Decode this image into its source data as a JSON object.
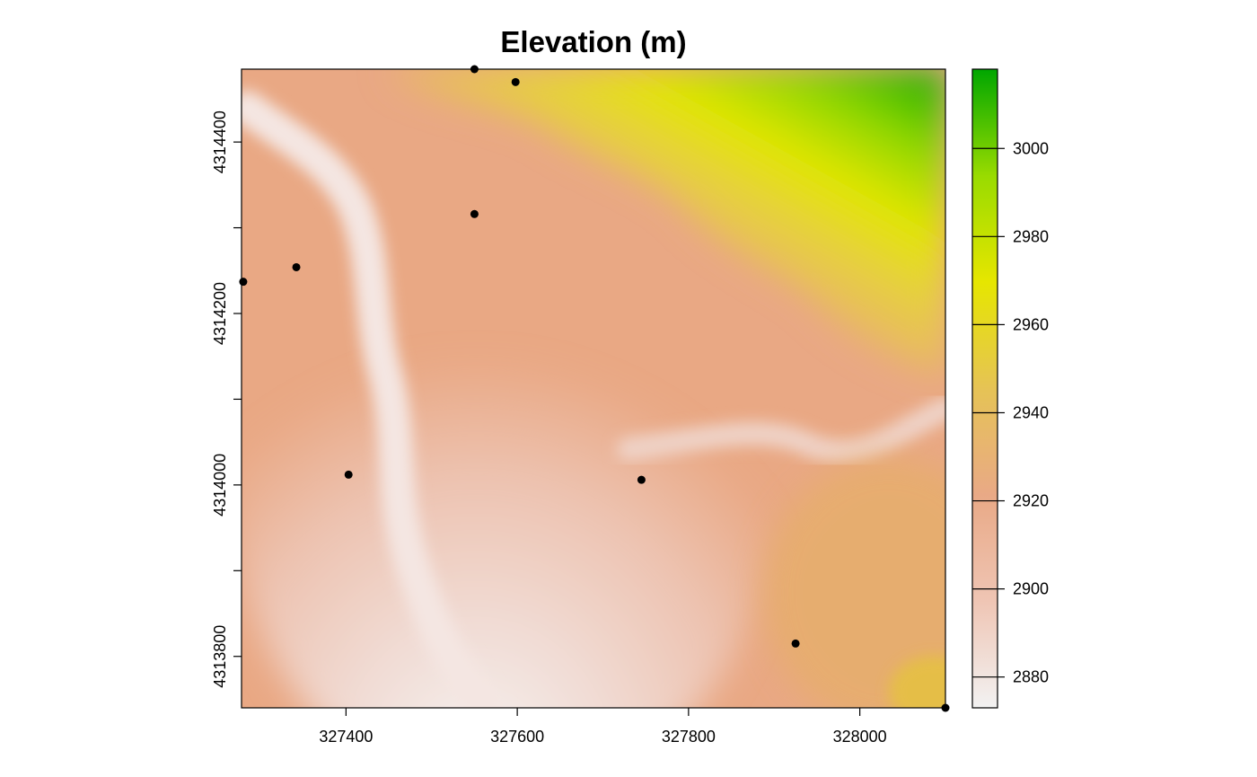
{
  "map": {
    "title": "Elevation (m)",
    "x_ticks": [
      "327400",
      "327600",
      "327800",
      "328000"
    ],
    "x_tick_values": [
      327400,
      327600,
      327800,
      328000
    ],
    "y_ticks": [
      "4313800",
      "4314000",
      "4314200",
      "4314400"
    ],
    "y_tick_values": [
      4313800,
      4314000,
      4314200,
      4314400
    ],
    "y_minor_tick_values": [
      4313900,
      4314100,
      4314300
    ],
    "extent": {
      "xmin": 327278,
      "xmax": 328100,
      "ymin": 4313740,
      "ymax": 4314485
    },
    "legend": {
      "labels": [
        "2880",
        "2900",
        "2920",
        "2940",
        "2960",
        "2980",
        "3000"
      ],
      "values": [
        2880,
        2900,
        2920,
        2940,
        2960,
        2980,
        3000
      ],
      "range": [
        2873,
        3018
      ],
      "palette": [
        "#F2F2F2",
        "#EFC5B4",
        "#E9A986",
        "#E6C355",
        "#E6E600",
        "#99DB00",
        "#00A600"
      ]
    },
    "points": [
      {
        "x": 327550,
        "y": 4314485
      },
      {
        "x": 327598,
        "y": 4314470
      },
      {
        "x": 327550,
        "y": 4314316
      },
      {
        "x": 327342,
        "y": 4314254
      },
      {
        "x": 327280,
        "y": 4314237
      },
      {
        "x": 327403,
        "y": 4314012
      },
      {
        "x": 327745,
        "y": 4314006
      },
      {
        "x": 327925,
        "y": 4313815
      },
      {
        "x": 328100,
        "y": 4313740
      }
    ],
    "point_color": "#000000"
  }
}
